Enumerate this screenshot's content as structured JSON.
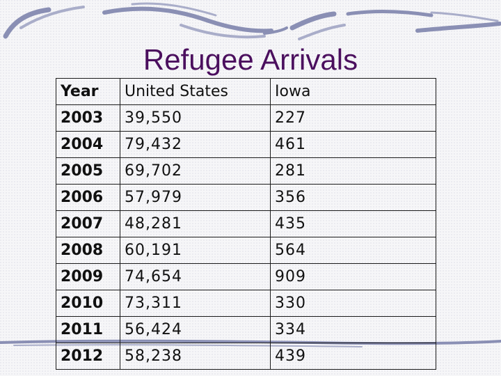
{
  "slide": {
    "title": "Refugee Arrivals"
  },
  "table": {
    "headers": [
      "Year",
      "United States",
      "Iowa"
    ],
    "rows": [
      [
        "2003",
        "39,550",
        "227"
      ],
      [
        "2004",
        "79,432",
        "461"
      ],
      [
        "2005",
        "69,702",
        "281"
      ],
      [
        "2006",
        "57,979",
        "356"
      ],
      [
        "2007",
        "48,281",
        "435"
      ],
      [
        "2008",
        "60,191",
        "564"
      ],
      [
        "2009",
        "74,654",
        "909"
      ],
      [
        "2010",
        "73,311",
        "330"
      ],
      [
        "2011",
        "56,424",
        "334"
      ],
      [
        "2012",
        "58,238",
        "439"
      ]
    ]
  },
  "colors": {
    "title": "#4b0f5e",
    "decoration": "#8a8fb4",
    "text": "#111111"
  }
}
